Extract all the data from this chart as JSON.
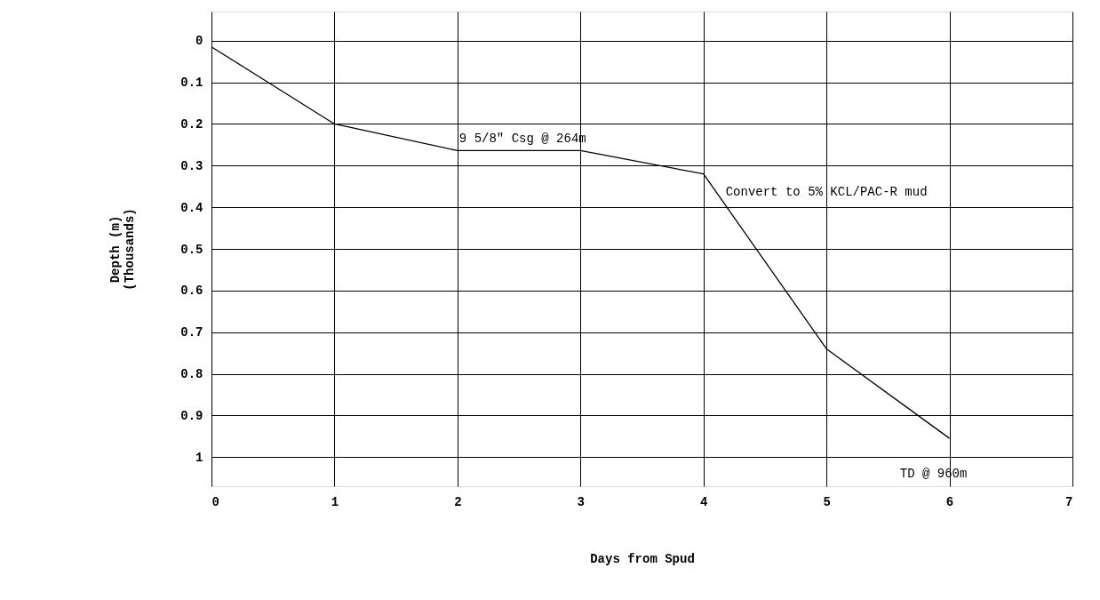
{
  "chart_data": {
    "type": "line",
    "xlabel": "Days from Spud",
    "ylabel": "Depth (m)\n(Thousands)",
    "x": [
      0,
      1,
      2,
      3,
      4,
      5,
      6
    ],
    "series": [
      {
        "color": "#000000",
        "values": [
          0.015,
          0.2,
          0.264,
          0.264,
          0.32,
          0.74,
          0.955
        ]
      }
    ],
    "xlim": [
      0,
      7
    ],
    "xticks": [
      0,
      1,
      2,
      3,
      4,
      5,
      6,
      7
    ],
    "ylim": [
      1.07,
      -0.07
    ],
    "yticks": [
      0,
      0.1,
      0.2,
      0.3,
      0.4,
      0.5,
      0.6,
      0.7,
      0.8,
      0.9,
      1
    ],
    "annotations": [
      {
        "text": "9 5/8\" Csg @ 264m",
        "x": 2,
        "y": 0.264
      },
      {
        "text": "Convert to 5% KCL/PAC-R mud",
        "x": 4,
        "y": 0.32
      },
      {
        "text": "TD @ 960m",
        "x": 6,
        "y": 0.955
      }
    ],
    "grid": true,
    "marker": "none",
    "line_style": "solid"
  }
}
